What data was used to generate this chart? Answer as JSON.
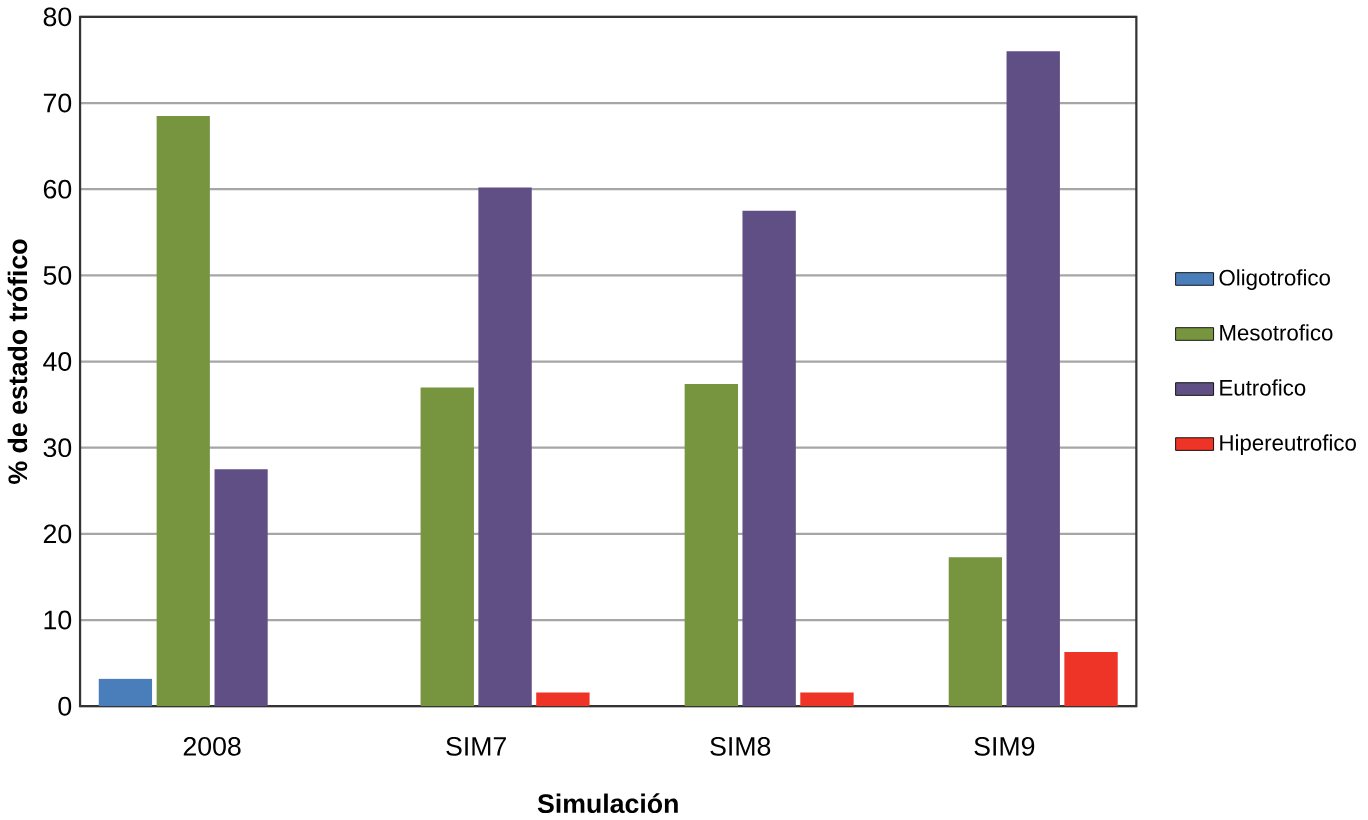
{
  "chart_data": {
    "type": "bar",
    "xlabel": "Simulación",
    "ylabel": "% de estado trófico",
    "categories": [
      "2008",
      "SIM7",
      "SIM8",
      "SIM9"
    ],
    "series": [
      {
        "name": "Oligotrofico",
        "color": "#4a7ebb",
        "values": [
          3.2,
          0,
          0,
          0
        ]
      },
      {
        "name": "Mesotrofico",
        "color": "#77953f",
        "values": [
          68.5,
          37,
          37.4,
          17.3
        ]
      },
      {
        "name": "Eutrofico",
        "color": "#604f85",
        "values": [
          27.5,
          60.2,
          57.5,
          76
        ]
      },
      {
        "name": "Hipereutrofico",
        "color": "#ee3427",
        "values": [
          0,
          1.6,
          1.6,
          6.3
        ]
      }
    ],
    "ylim": [
      0,
      80
    ],
    "yticks": [
      0,
      10,
      20,
      30,
      40,
      50,
      60,
      70,
      80
    ],
    "grid": "y",
    "legend": "right"
  }
}
